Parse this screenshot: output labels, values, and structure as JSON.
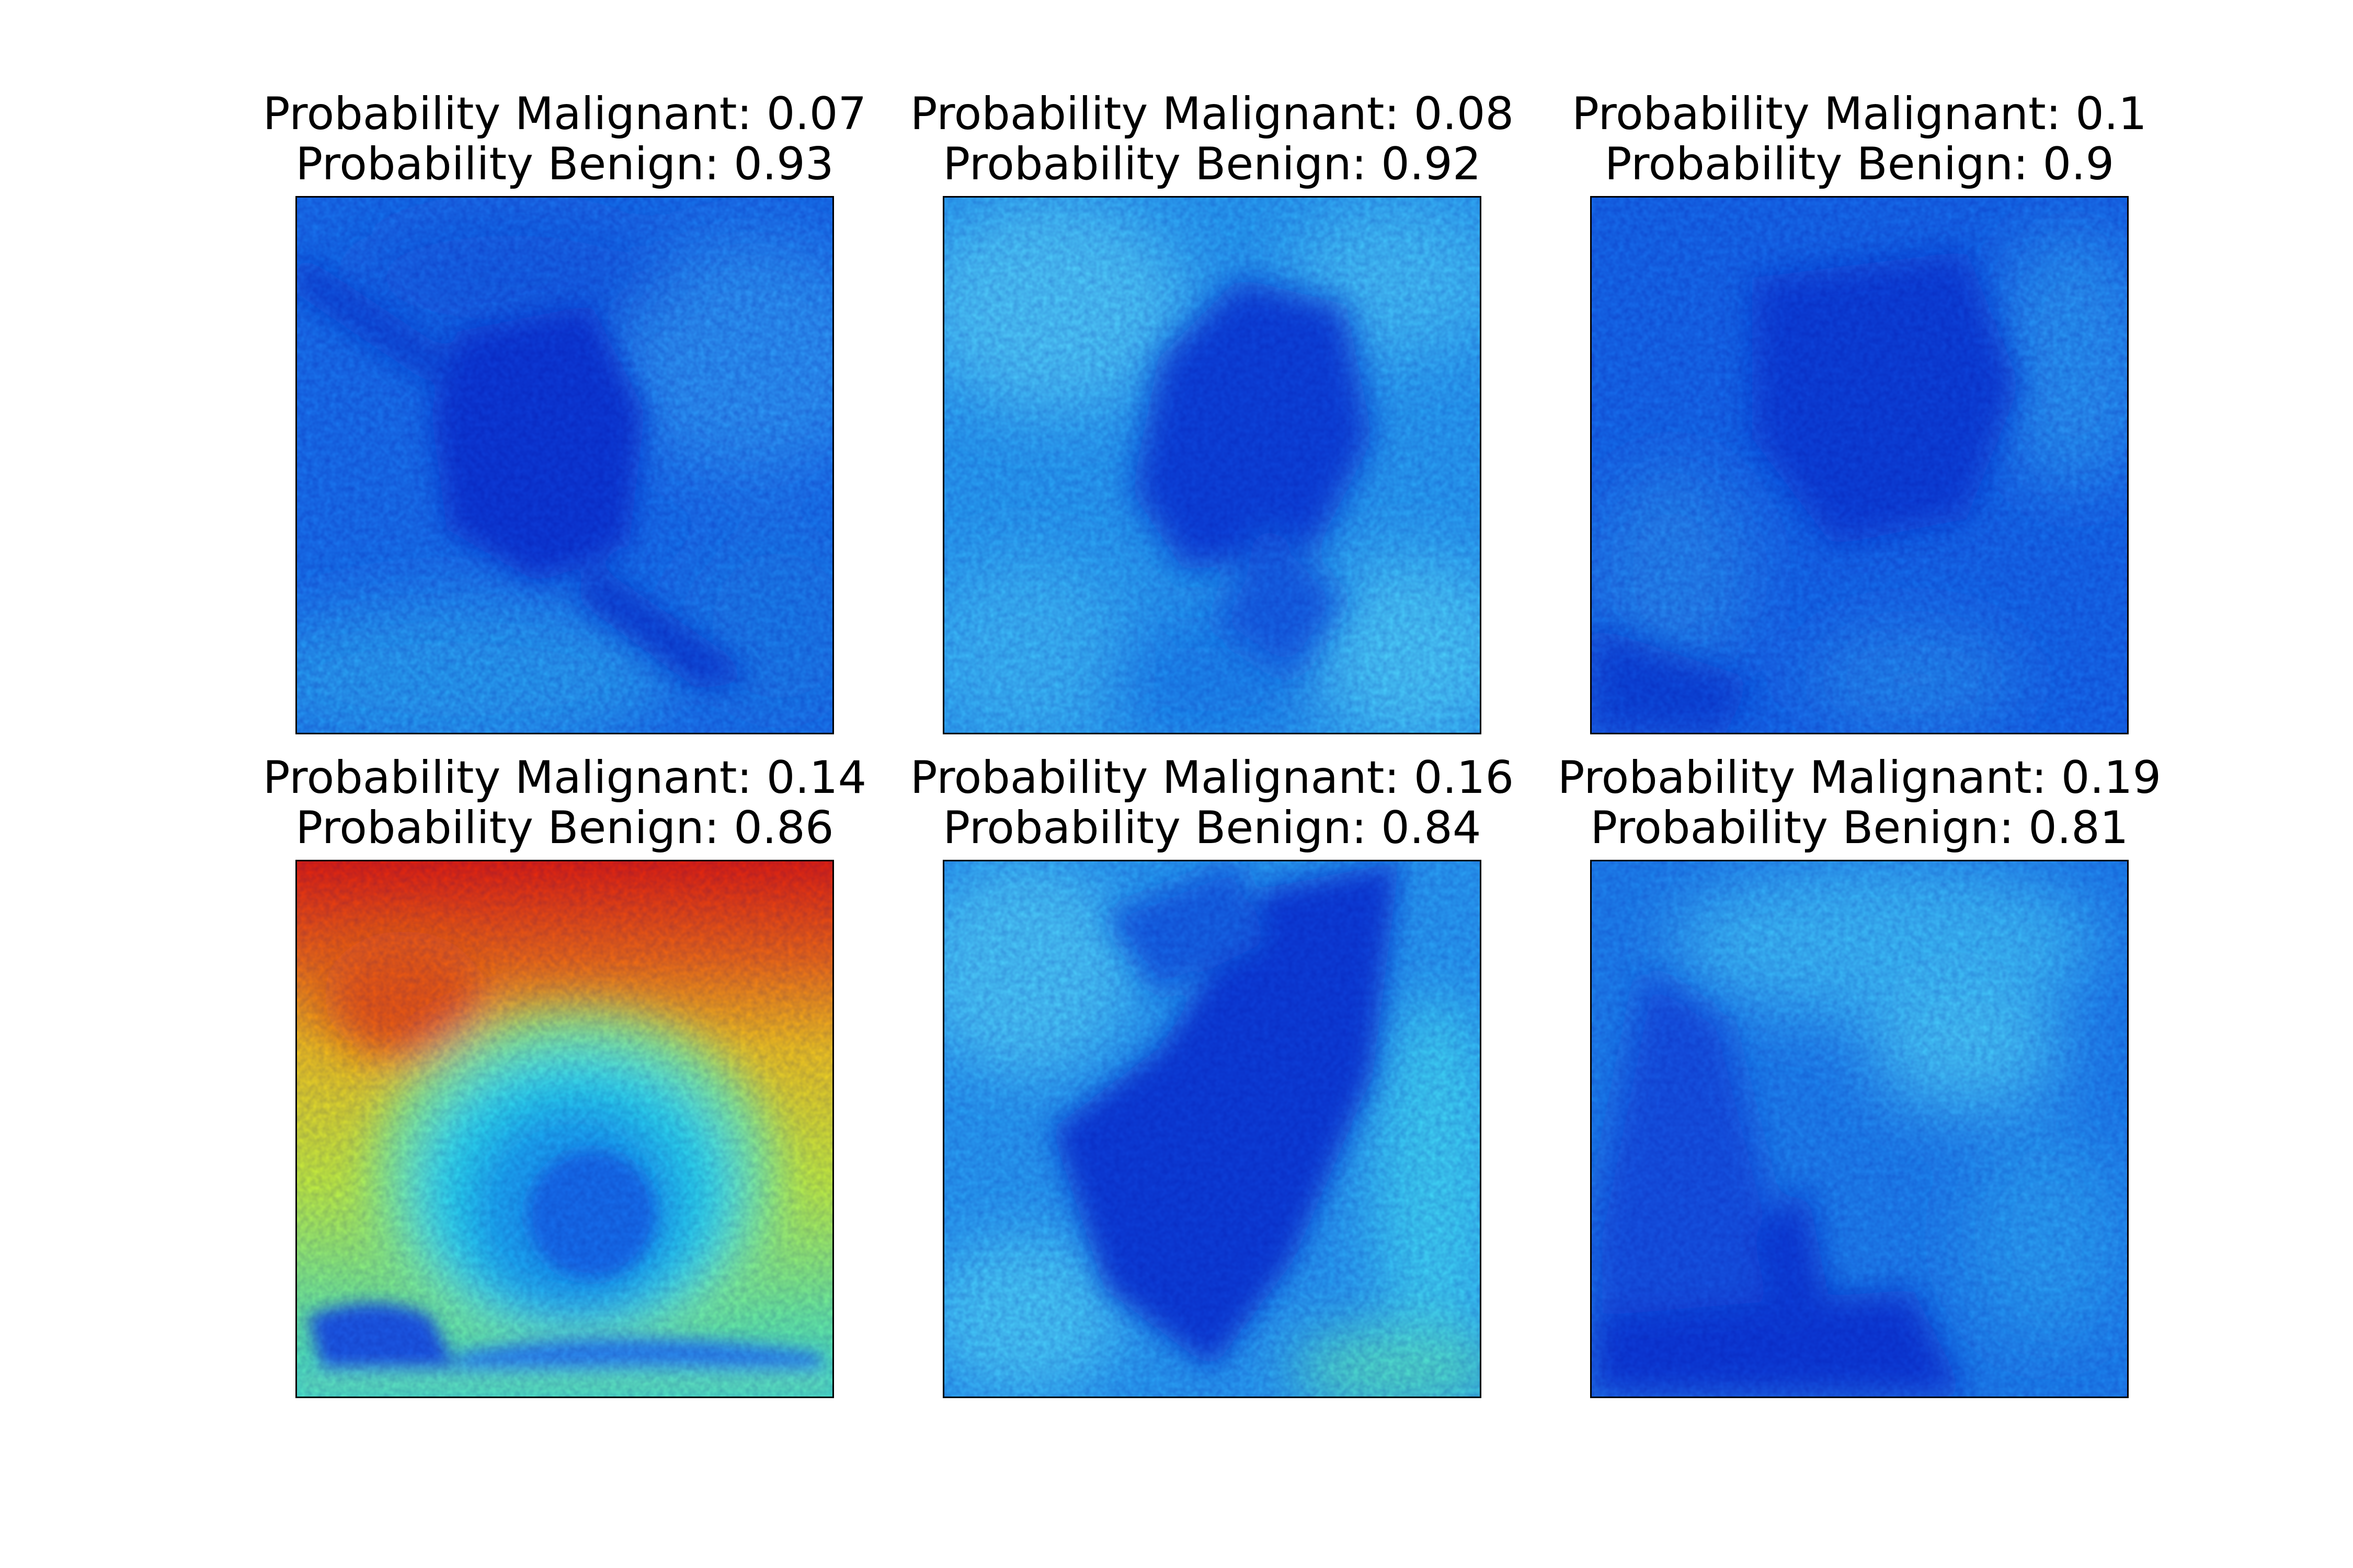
{
  "figure": {
    "panels": [
      {
        "malignant_label": "Probability Malignant: 0.07",
        "benign_label": "Probability Benign: 0.93",
        "probability_malignant": 0.07,
        "probability_benign": 0.93,
        "colormap": "jet"
      },
      {
        "malignant_label": "Probability Malignant: 0.08",
        "benign_label": "Probability Benign: 0.92",
        "probability_malignant": 0.08,
        "probability_benign": 0.92,
        "colormap": "jet"
      },
      {
        "malignant_label": "Probability Malignant: 0.1",
        "benign_label": "Probability Benign: 0.9",
        "probability_malignant": 0.1,
        "probability_benign": 0.9,
        "colormap": "jet"
      },
      {
        "malignant_label": "Probability Malignant: 0.14",
        "benign_label": "Probability Benign: 0.86",
        "probability_malignant": 0.14,
        "probability_benign": 0.86,
        "colormap": "jet"
      },
      {
        "malignant_label": "Probability Malignant: 0.16",
        "benign_label": "Probability Benign: 0.84",
        "probability_malignant": 0.16,
        "probability_benign": 0.84,
        "colormap": "jet"
      },
      {
        "malignant_label": "Probability Malignant: 0.19",
        "benign_label": "Probability Benign: 0.81",
        "probability_malignant": 0.19,
        "probability_benign": 0.81,
        "colormap": "jet"
      }
    ]
  }
}
